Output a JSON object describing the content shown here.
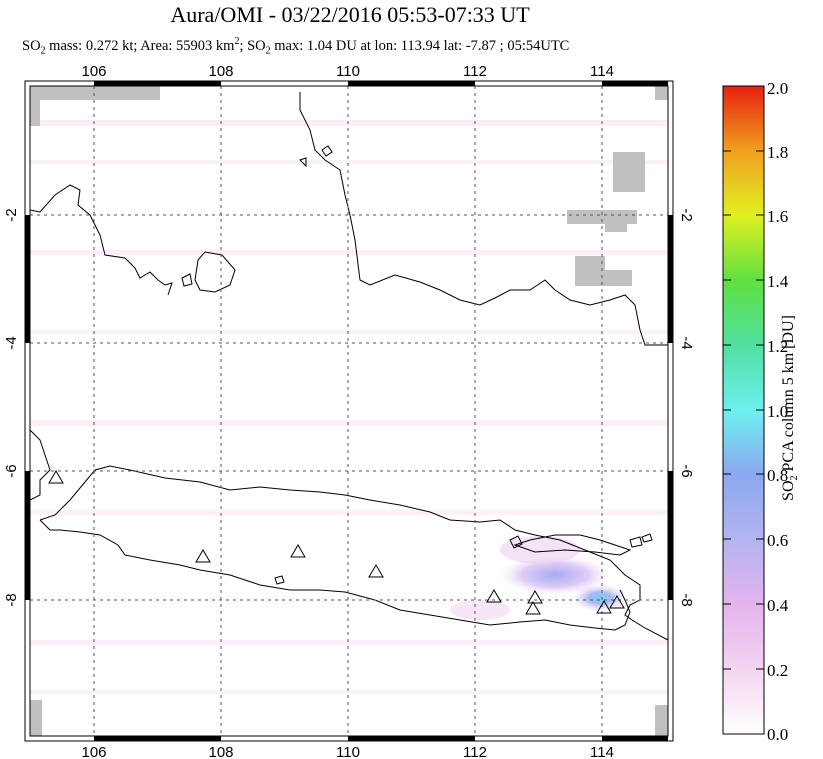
{
  "title": "Aura/OMI - 03/22/2016 05:53-07:33 UT",
  "subtitle": {
    "so2_mass_prefix": "SO",
    "so2_mass_sub": "2",
    "so2_mass_text": " mass: 0.272 kt; Area: 55903 km",
    "area_sup": "2",
    "so2_max_prefix": "; SO",
    "so2_max_sub": "2",
    "so2_max_text": " max: 1.04 DU at lon: 113.94 lat: -7.87 ; 05:54UTC"
  },
  "map": {
    "lon_ticks": [
      "106",
      "108",
      "110",
      "112",
      "114"
    ],
    "lat_ticks": [
      "-2",
      "-4",
      "-6",
      "-8"
    ],
    "volcano_icon": "triangle-outline",
    "colors": {
      "land_outline": "#000000",
      "grid": "#666666",
      "missing_data": "#c0c0c0"
    }
  },
  "colorbar": {
    "title_prefix": "SO",
    "title_sub": "2",
    "title_text": " PCA column 5 km [DU]",
    "ticks": [
      "2.0",
      "1.8",
      "1.6",
      "1.4",
      "1.2",
      "1.0",
      "0.8",
      "0.6",
      "0.4",
      "0.2",
      "0.0"
    ],
    "colors": [
      "#ffffff",
      "#f0c8f0",
      "#b4b4f0",
      "#64c8f0",
      "#6cf0e8",
      "#50e070",
      "#a0e030",
      "#f0f020",
      "#f0a020",
      "#f05020",
      "#e82010"
    ]
  }
}
